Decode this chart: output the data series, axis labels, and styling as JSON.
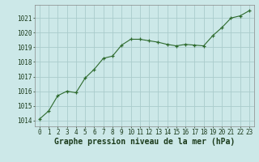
{
  "x": [
    0,
    1,
    2,
    3,
    4,
    5,
    6,
    7,
    8,
    9,
    10,
    11,
    12,
    13,
    14,
    15,
    16,
    17,
    18,
    19,
    20,
    21,
    22,
    23
  ],
  "y": [
    1014.1,
    1014.65,
    1015.7,
    1016.0,
    1015.9,
    1016.9,
    1017.5,
    1018.25,
    1018.4,
    1019.15,
    1019.55,
    1019.55,
    1019.45,
    1019.35,
    1019.2,
    1019.1,
    1019.2,
    1019.15,
    1019.1,
    1019.8,
    1020.35,
    1021.0,
    1021.15,
    1021.5
  ],
  "line_color": "#2d6a2d",
  "marker": "+",
  "marker_color": "#2d6a2d",
  "bg_color": "#cce8e8",
  "grid_color": "#aacccc",
  "xlabel": "Graphe pression niveau de la mer (hPa)",
  "xlabel_color": "#1a3a1a",
  "xlabel_fontsize": 7.0,
  "ylabel_ticks": [
    1014,
    1015,
    1016,
    1017,
    1018,
    1019,
    1020,
    1021
  ],
  "xlim": [
    -0.5,
    23.5
  ],
  "ylim": [
    1013.6,
    1021.9
  ],
  "xticks": [
    0,
    1,
    2,
    3,
    4,
    5,
    6,
    7,
    8,
    9,
    10,
    11,
    12,
    13,
    14,
    15,
    16,
    17,
    18,
    19,
    20,
    21,
    22,
    23
  ],
  "tick_fontsize": 5.5,
  "title_color": "#1a3a1a"
}
